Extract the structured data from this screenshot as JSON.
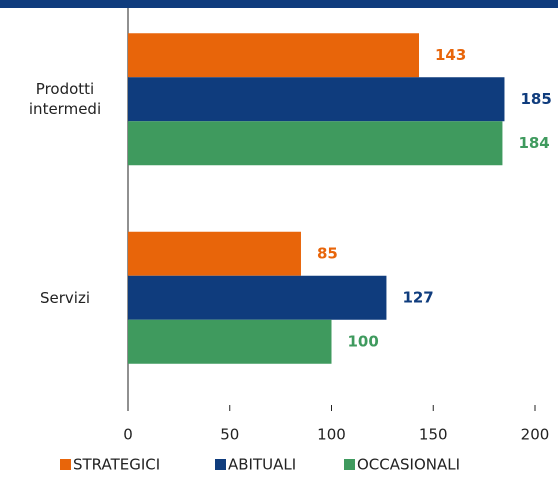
{
  "chart_data": {
    "type": "bar",
    "orientation": "horizontal",
    "categories": [
      "Prodotti intermedi",
      "Servizi"
    ],
    "series": [
      {
        "name": "STRATEGICI",
        "color": "#e8650a",
        "values": [
          143,
          85
        ]
      },
      {
        "name": "ABITUALI",
        "color": "#0f3c7d",
        "values": [
          185,
          127
        ]
      },
      {
        "name": "OCCASIONALI",
        "color": "#3f9a5e",
        "values": [
          184,
          100
        ]
      }
    ],
    "xlim": [
      0,
      200
    ],
    "xticks": [
      0,
      50,
      100,
      150,
      200
    ],
    "legend": "bottom"
  }
}
